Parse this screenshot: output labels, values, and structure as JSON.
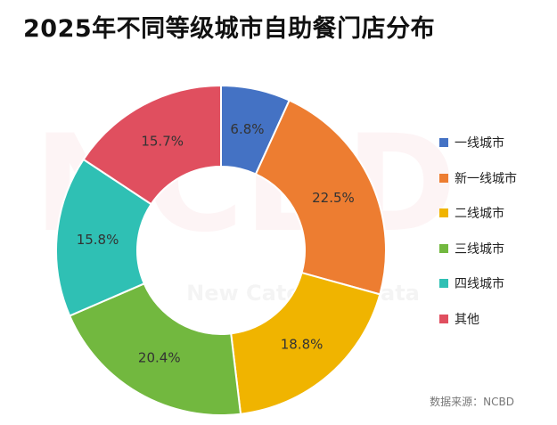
{
  "title": "2025年不同等级城市自助餐门店分布",
  "source": "数据来源：NCBD",
  "watermark": {
    "logo": "NCBD",
    "text": "New Category Data"
  },
  "colors": {
    "slice_border": "#ffffff",
    "label_text": "#333333"
  },
  "chart_data": {
    "type": "pie",
    "variant": "donut",
    "title": "2025年不同等级城市自助餐门店分布",
    "legend_position": "right",
    "unit": "%",
    "categories": [
      "一线城市",
      "新一线城市",
      "二线城市",
      "三线城市",
      "四线城市",
      "其他"
    ],
    "values": [
      6.8,
      22.5,
      18.8,
      20.4,
      15.8,
      15.7
    ],
    "labels": [
      "6.8%",
      "22.5%",
      "18.8%",
      "20.4%",
      "15.8%",
      "15.7%"
    ],
    "colors": [
      "#4472c4",
      "#ed7d31",
      "#f0b400",
      "#72b83f",
      "#2fc0b4",
      "#e04f5f"
    ]
  }
}
